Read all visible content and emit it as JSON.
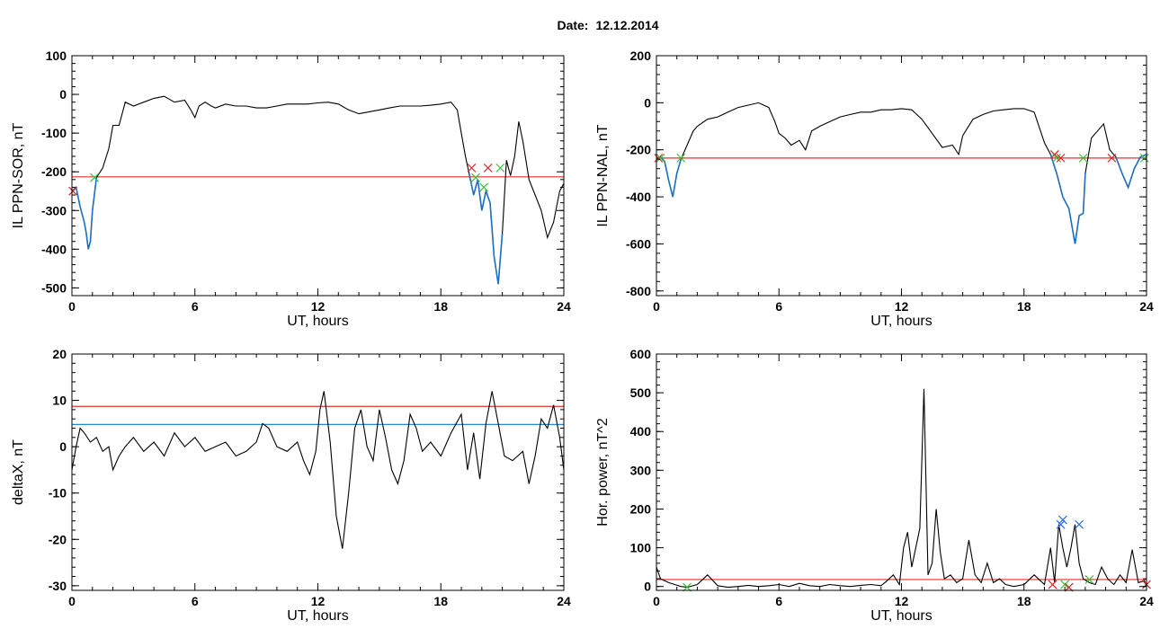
{
  "header": {
    "label": "Date:",
    "value": "12.12.2014"
  },
  "colors": {
    "axis": "#000000",
    "trace": "#000000",
    "threshold_red": "#e8312c",
    "threshold_blue": "#2a87d0",
    "storm": "#1f6fc1",
    "marker_red": "#e02020",
    "marker_green": "#39c239",
    "marker_blue": "#2a6ff0"
  },
  "chart_data": [
    {
      "id": "sor",
      "type": "line",
      "xlabel": "UT, hours",
      "ylabel": "IL PPN-SOR, nT",
      "xlim": [
        0,
        24
      ],
      "ylim": [
        -520,
        100
      ],
      "xticks": [
        0,
        6,
        12,
        18,
        24
      ],
      "yticks": [
        100,
        0,
        -100,
        -200,
        -300,
        -400,
        -500
      ],
      "hlines": [
        {
          "y": -213,
          "color": "red"
        }
      ],
      "blue_segments": [
        [
          0,
          1.2
        ],
        [
          19.3,
          21
        ]
      ],
      "series": [
        {
          "x": [
            0,
            0.2,
            0.4,
            0.6,
            0.7,
            0.8,
            0.9,
            1.0,
            1.2,
            1.5,
            1.8,
            2.0,
            2.3,
            2.6,
            3.0,
            3.5,
            4.0,
            4.5,
            5.0,
            5.5,
            5.8,
            6.0,
            6.2,
            6.5,
            6.8,
            7.0,
            7.5,
            8.0,
            8.5,
            9.0,
            9.5,
            10,
            10.5,
            11,
            11.5,
            12,
            12.5,
            13,
            13.5,
            14,
            14.5,
            15,
            15.5,
            16,
            16.5,
            17,
            17.5,
            18,
            18.5,
            18.8,
            19.0,
            19.2,
            19.4,
            19.6,
            19.8,
            20.0,
            20.2,
            20.4,
            20.6,
            20.8,
            21.0,
            21.2,
            21.4,
            21.6,
            21.8,
            22.0,
            22.3,
            22.6,
            22.9,
            23.2,
            23.5,
            23.8,
            24.0
          ],
          "y": [
            -250,
            -240,
            -290,
            -330,
            -360,
            -400,
            -380,
            -300,
            -215,
            -190,
            -140,
            -80,
            -80,
            -20,
            -30,
            -20,
            -10,
            -5,
            -20,
            -15,
            -40,
            -60,
            -30,
            -20,
            -30,
            -35,
            -25,
            -30,
            -30,
            -35,
            -35,
            -30,
            -25,
            -25,
            -25,
            -22,
            -20,
            -25,
            -40,
            -50,
            -45,
            -40,
            -35,
            -30,
            -30,
            -30,
            -28,
            -25,
            -20,
            -40,
            -100,
            -160,
            -210,
            -260,
            -220,
            -300,
            -250,
            -280,
            -420,
            -490,
            -360,
            -170,
            -210,
            -160,
            -70,
            -120,
            -220,
            -260,
            -300,
            -370,
            -330,
            -250,
            -230
          ]
        }
      ],
      "markers": [
        {
          "x": 0.05,
          "y": -250,
          "color": "red"
        },
        {
          "x": 1.1,
          "y": -215,
          "color": "green"
        },
        {
          "x": 19.5,
          "y": -190,
          "color": "red"
        },
        {
          "x": 19.7,
          "y": -215,
          "color": "green"
        },
        {
          "x": 20.3,
          "y": -190,
          "color": "red"
        },
        {
          "x": 20.1,
          "y": -240,
          "color": "green"
        },
        {
          "x": 20.9,
          "y": -190,
          "color": "green"
        }
      ]
    },
    {
      "id": "nal",
      "type": "line",
      "xlabel": "UT, hours",
      "ylabel": "IL PPN-NAL, nT",
      "xlim": [
        0,
        24
      ],
      "ylim": [
        -820,
        200
      ],
      "xticks": [
        0,
        6,
        12,
        18,
        24
      ],
      "yticks": [
        200,
        0,
        -200,
        -400,
        -600,
        -800
      ],
      "hlines": [
        {
          "y": -235,
          "color": "red"
        }
      ],
      "blue_segments": [
        [
          0,
          1.2
        ],
        [
          19.3,
          21
        ],
        [
          22.3,
          24
        ]
      ],
      "series": [
        {
          "x": [
            0,
            0.2,
            0.4,
            0.6,
            0.8,
            1.0,
            1.2,
            1.5,
            1.8,
            2.0,
            2.5,
            3.0,
            3.5,
            4.0,
            4.5,
            5.0,
            5.5,
            5.8,
            6.0,
            6.3,
            6.6,
            7.0,
            7.3,
            7.6,
            8.0,
            8.5,
            9.0,
            9.5,
            10,
            10.5,
            11,
            11.5,
            12,
            12.5,
            13,
            13.5,
            14,
            14.5,
            14.8,
            15,
            15.5,
            16,
            16.5,
            17,
            17.5,
            18,
            18.5,
            19.0,
            19.3,
            19.6,
            19.9,
            20.2,
            20.5,
            20.7,
            20.9,
            21.0,
            21.3,
            21.6,
            21.9,
            22.2,
            22.5,
            22.8,
            23.1,
            23.4,
            23.7,
            24.0
          ],
          "y": [
            -240,
            -230,
            -250,
            -330,
            -400,
            -300,
            -240,
            -180,
            -120,
            -100,
            -70,
            -60,
            -40,
            -20,
            -10,
            0,
            -20,
            -80,
            -130,
            -150,
            -180,
            -160,
            -200,
            -120,
            -100,
            -80,
            -60,
            -50,
            -40,
            -40,
            -30,
            -30,
            -25,
            -30,
            -70,
            -130,
            -190,
            -180,
            -220,
            -140,
            -70,
            -50,
            -35,
            -30,
            -25,
            -25,
            -40,
            -170,
            -220,
            -300,
            -400,
            -450,
            -600,
            -480,
            -470,
            -300,
            -150,
            -120,
            -90,
            -200,
            -230,
            -300,
            -360,
            -280,
            -230,
            -220
          ]
        }
      ],
      "markers": [
        {
          "x": 0.1,
          "y": -235,
          "color": "red"
        },
        {
          "x": 0.2,
          "y": -235,
          "color": "green"
        },
        {
          "x": 1.2,
          "y": -235,
          "color": "green"
        },
        {
          "x": 19.5,
          "y": -220,
          "color": "red"
        },
        {
          "x": 19.6,
          "y": -235,
          "color": "green"
        },
        {
          "x": 19.8,
          "y": -235,
          "color": "red"
        },
        {
          "x": 20.9,
          "y": -235,
          "color": "green"
        },
        {
          "x": 22.3,
          "y": -235,
          "color": "red"
        },
        {
          "x": 23.9,
          "y": -235,
          "color": "green"
        }
      ]
    },
    {
      "id": "deltax",
      "type": "line",
      "xlabel": "UT, hours",
      "ylabel": "deltaX, nT",
      "xlim": [
        0,
        24
      ],
      "ylim": [
        -31,
        20
      ],
      "xticks": [
        0,
        6,
        12,
        18,
        24
      ],
      "yticks": [
        20,
        10,
        0,
        -10,
        -20,
        -30
      ],
      "hlines": [
        {
          "y": 8.7,
          "color": "red"
        },
        {
          "y": 4.8,
          "color": "blue"
        }
      ],
      "blue_segments": [],
      "series": [
        {
          "x": [
            0,
            0.2,
            0.4,
            0.6,
            0.9,
            1.2,
            1.5,
            1.8,
            2.0,
            2.3,
            2.6,
            3.0,
            3.5,
            4.0,
            4.5,
            5.0,
            5.5,
            6.0,
            6.5,
            7.0,
            7.5,
            8.0,
            8.5,
            9.0,
            9.3,
            9.6,
            10,
            10.5,
            11,
            11.3,
            11.6,
            11.9,
            12.1,
            12.3,
            12.6,
            12.9,
            13.2,
            13.5,
            13.8,
            14.1,
            14.4,
            14.7,
            15.0,
            15.3,
            15.6,
            15.9,
            16.2,
            16.5,
            16.8,
            17.1,
            17.5,
            18.0,
            18.5,
            19.0,
            19.3,
            19.6,
            19.9,
            20.2,
            20.5,
            20.8,
            21.1,
            21.5,
            22.0,
            22.3,
            22.6,
            22.9,
            23.2,
            23.5,
            23.8,
            24.0
          ],
          "y": [
            -5,
            0,
            4,
            3,
            1,
            2,
            -1,
            0,
            -5,
            -2,
            0,
            2,
            -1,
            1,
            -2,
            3,
            0,
            2,
            -1,
            0,
            1,
            -2,
            -1,
            1,
            5,
            4,
            0,
            -1,
            1,
            -3,
            -6,
            -1,
            8,
            12,
            1,
            -15,
            -22,
            -10,
            4,
            8,
            0,
            -3,
            8,
            2,
            -5,
            -8,
            -3,
            7,
            4,
            -1,
            1,
            -2,
            3,
            7,
            -5,
            3,
            -7,
            5,
            12,
            5,
            -2,
            -3,
            -1,
            -8,
            -2,
            6,
            4,
            9,
            2,
            -5
          ]
        }
      ],
      "markers": []
    },
    {
      "id": "power",
      "type": "line",
      "xlabel": "UT, hours",
      "ylabel": "Hor. power, nT^2",
      "xlim": [
        0,
        24
      ],
      "ylim": [
        -10,
        600
      ],
      "xticks": [
        0,
        6,
        12,
        18,
        24
      ],
      "yticks": [
        600,
        500,
        400,
        300,
        200,
        100,
        0
      ],
      "hlines": [
        {
          "y": 18,
          "color": "red"
        }
      ],
      "blue_segments": [],
      "series": [
        {
          "x": [
            0,
            0.2,
            0.4,
            0.6,
            0.9,
            1.2,
            1.5,
            2.0,
            2.5,
            3.0,
            3.5,
            4.0,
            4.5,
            5.0,
            5.5,
            6.0,
            6.5,
            7.0,
            7.5,
            8.0,
            8.5,
            9.0,
            9.5,
            10,
            10.5,
            11,
            11.3,
            11.6,
            11.9,
            12.1,
            12.3,
            12.5,
            12.7,
            12.9,
            13.1,
            13.3,
            13.5,
            13.7,
            13.9,
            14.1,
            14.4,
            14.7,
            15.0,
            15.3,
            15.6,
            15.9,
            16.2,
            16.5,
            16.8,
            17.1,
            17.5,
            18.0,
            18.5,
            19.0,
            19.3,
            19.5,
            19.7,
            19.9,
            20.1,
            20.3,
            20.5,
            20.7,
            20.9,
            21.2,
            21.5,
            21.8,
            22.1,
            22.4,
            22.7,
            23.0,
            23.3,
            23.6,
            23.9,
            24.0
          ],
          "y": [
            50,
            20,
            15,
            10,
            5,
            0,
            -2,
            5,
            30,
            2,
            -2,
            0,
            3,
            0,
            2,
            5,
            0,
            8,
            2,
            0,
            5,
            2,
            0,
            3,
            5,
            2,
            15,
            30,
            5,
            100,
            140,
            50,
            100,
            150,
            510,
            30,
            60,
            200,
            90,
            20,
            30,
            10,
            20,
            120,
            30,
            10,
            60,
            10,
            20,
            5,
            0,
            5,
            30,
            5,
            100,
            10,
            160,
            100,
            50,
            100,
            160,
            60,
            20,
            10,
            5,
            50,
            20,
            5,
            30,
            10,
            95,
            10,
            15,
            0
          ]
        }
      ],
      "markers": [
        {
          "x": 19.8,
          "y": 160,
          "color": "blue"
        },
        {
          "x": 19.9,
          "y": 172,
          "color": "blue"
        },
        {
          "x": 20.7,
          "y": 160,
          "color": "blue"
        },
        {
          "x": 1.5,
          "y": -2,
          "color": "green"
        },
        {
          "x": 19.4,
          "y": 5,
          "color": "red"
        },
        {
          "x": 20.0,
          "y": 5,
          "color": "green"
        },
        {
          "x": 20.2,
          "y": -2,
          "color": "red"
        },
        {
          "x": 21.2,
          "y": 18,
          "color": "green"
        },
        {
          "x": 24.0,
          "y": 5,
          "color": "red"
        }
      ]
    }
  ]
}
